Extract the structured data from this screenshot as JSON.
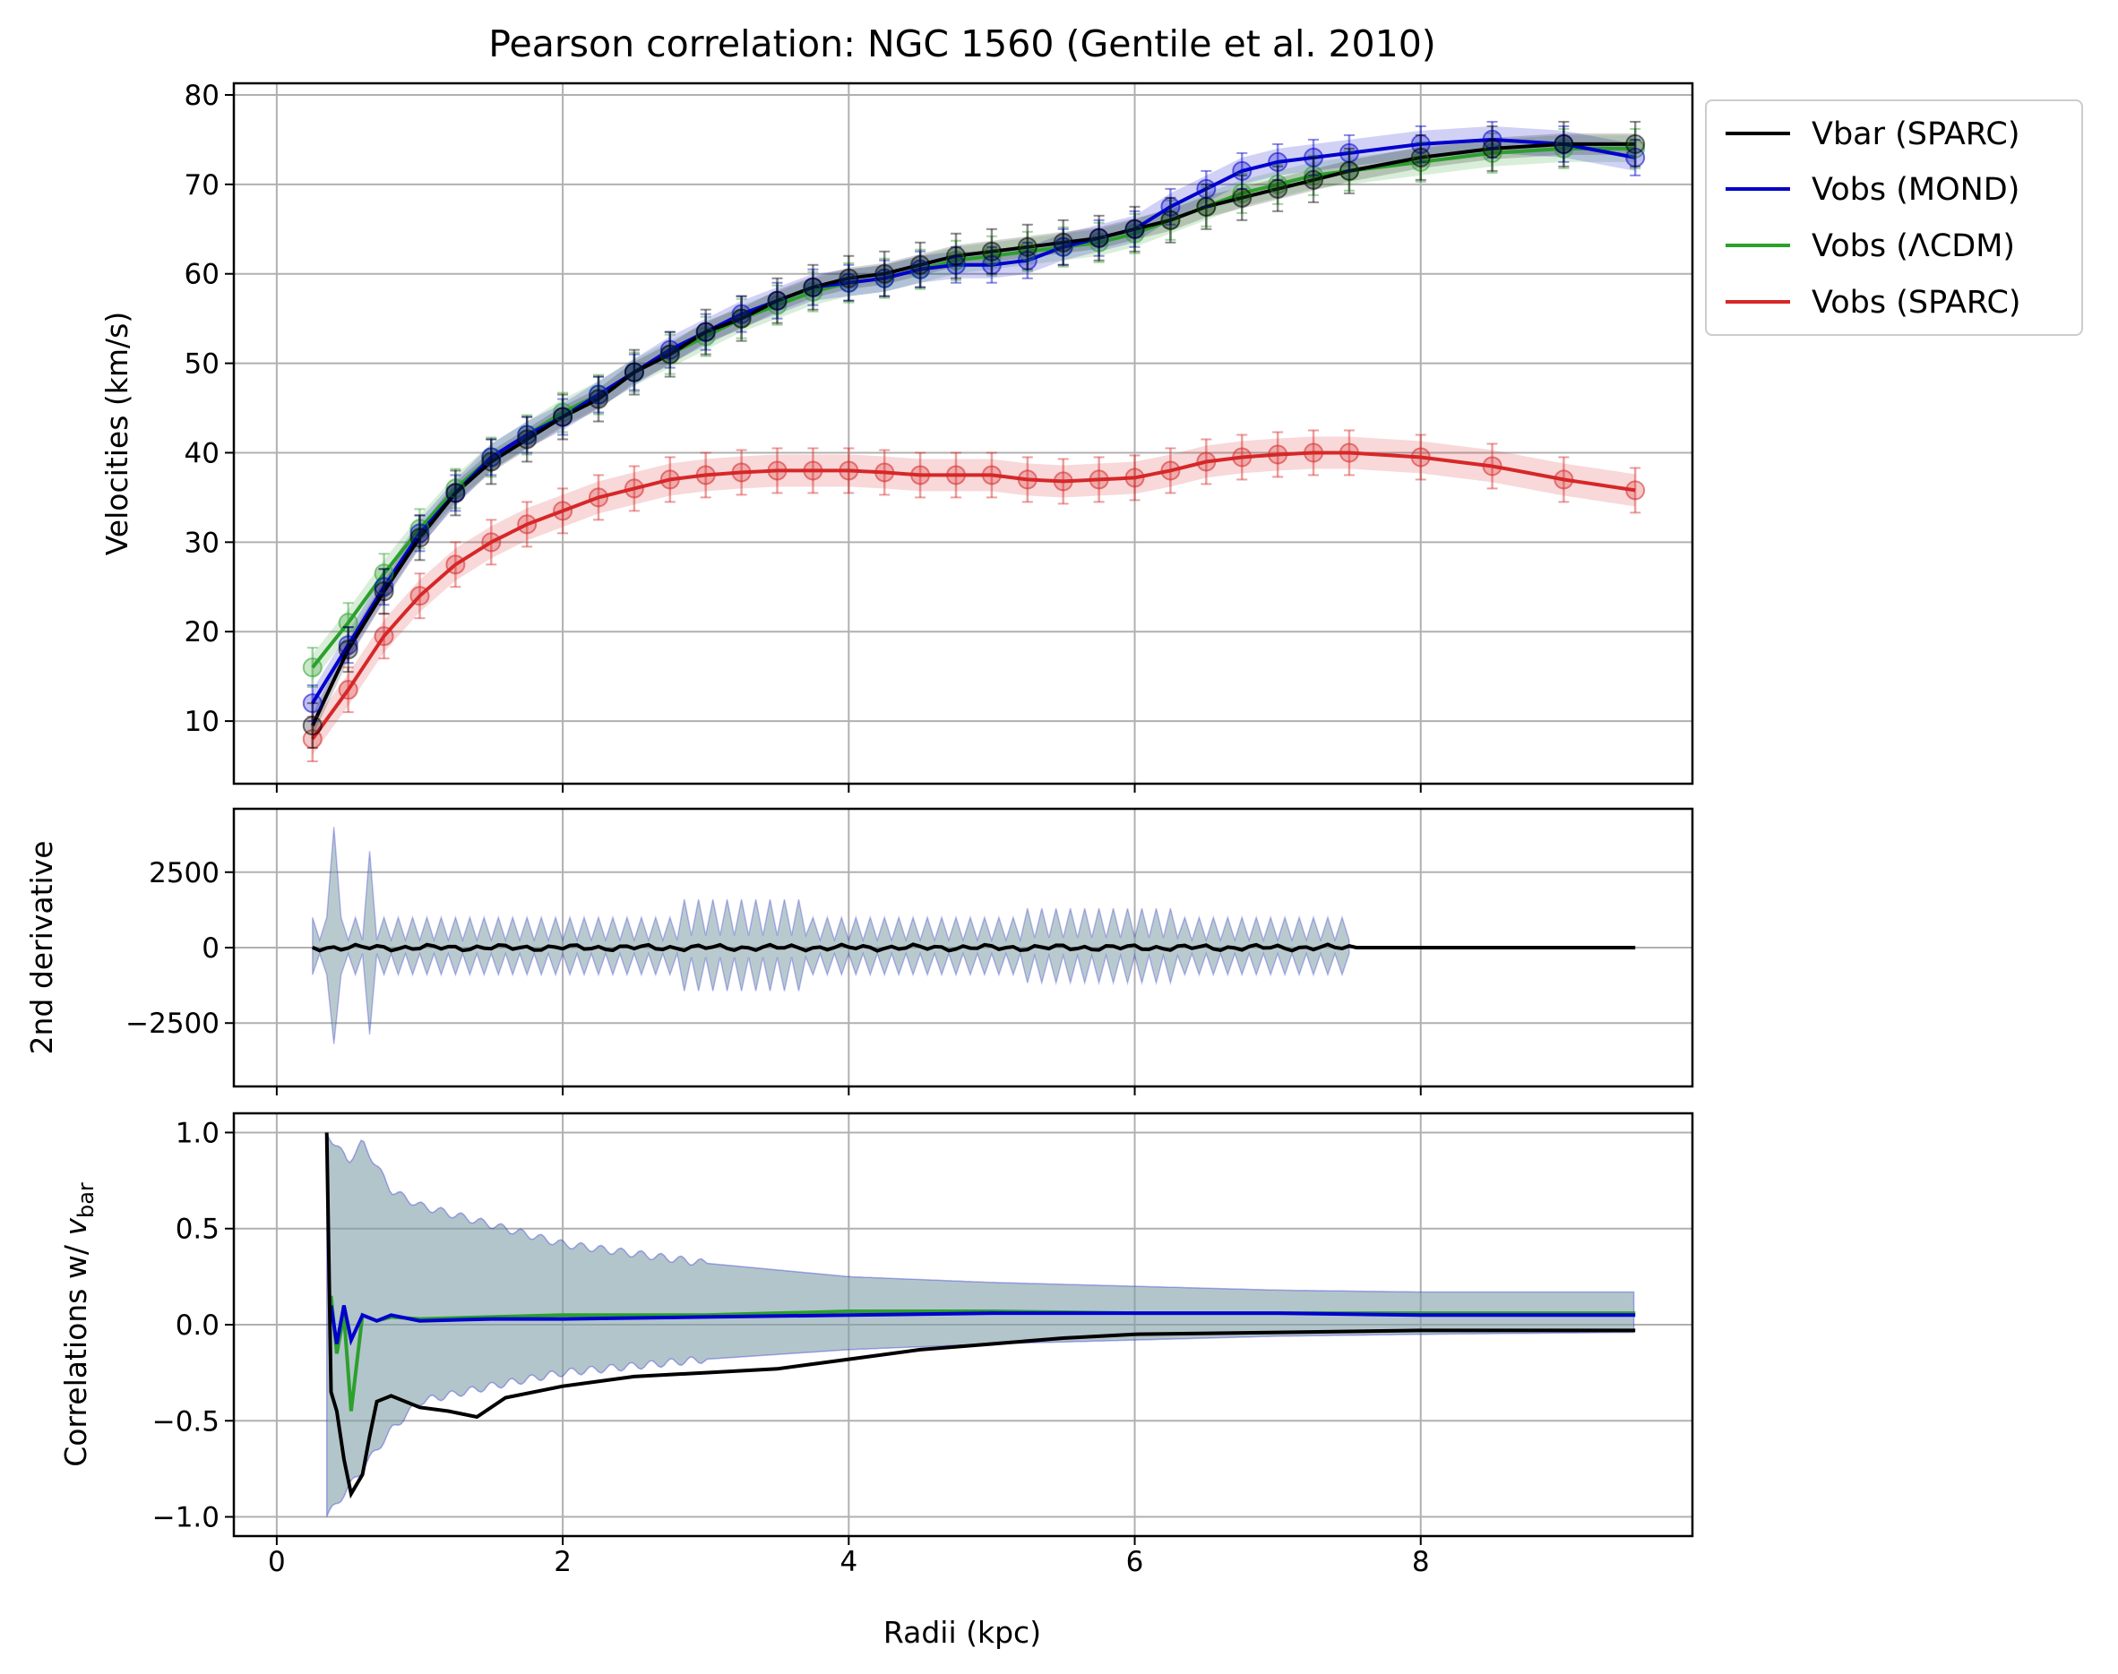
{
  "chart_data": {
    "type": "line",
    "title": "Pearson correlation: NGC 1560 (Gentile et al. 2010)",
    "xlabel": "Radii (kpc)",
    "xlim": [
      -0.3,
      9.9
    ],
    "xticks": [
      0,
      2,
      4,
      6,
      8
    ],
    "colors": {
      "vbar": "#000000",
      "mond": "#0000cc",
      "lcdm": "#2ca02c",
      "sparc": "#d62728",
      "band": "#7f9fa8",
      "grid": "#b0b0b0"
    },
    "legend": {
      "position": "outside-top-right",
      "entries": [
        "Vbar (SPARC)",
        "Vobs (MOND)",
        "Vobs (ΛCDM)",
        "Vobs (SPARC)"
      ]
    },
    "panels": [
      {
        "name": "velocities",
        "ylabel": "Velocities (km/s)",
        "ylim": [
          3,
          81.3
        ],
        "yticks": [
          10,
          20,
          30,
          40,
          50,
          60,
          70,
          80
        ],
        "ytick_labels": [
          "10",
          "20",
          "30",
          "40",
          "50",
          "60",
          "70",
          "80"
        ],
        "x": [
          0.25,
          0.5,
          0.75,
          1.0,
          1.25,
          1.5,
          1.75,
          2.0,
          2.25,
          2.5,
          2.75,
          3.0,
          3.25,
          3.5,
          3.75,
          4.0,
          4.25,
          4.5,
          4.75,
          5.0,
          5.25,
          5.5,
          5.75,
          6.0,
          6.25,
          6.5,
          6.75,
          7.0,
          7.25,
          7.5,
          8.0,
          8.5,
          9.0,
          9.5
        ],
        "series": [
          {
            "name": "Vbar (SPARC)",
            "values": [
              9.5,
              18,
              24.5,
              30.5,
              35.5,
              39,
              41.5,
              44,
              46,
              49,
              51,
              53.5,
              55,
              57,
              58.5,
              59.5,
              60,
              61,
              62,
              62.5,
              63,
              63.5,
              64,
              65,
              66,
              67.5,
              68.5,
              69.5,
              70.5,
              71.5,
              73,
              74,
              74.5,
              74.5
            ]
          },
          {
            "name": "Vobs (MOND)",
            "values": [
              12,
              18.5,
              25,
              31,
              35.5,
              39.5,
              42,
              44,
              46.5,
              49,
              51.5,
              53.5,
              55.5,
              57,
              58.5,
              59,
              59.5,
              60.5,
              61,
              61,
              61.5,
              63,
              64,
              65,
              67.5,
              69.5,
              71.5,
              72.5,
              73,
              73.5,
              74.5,
              75,
              74.5,
              73
            ]
          },
          {
            "name": "Vobs (ΛCDM)",
            "values": [
              16,
              21,
              26.5,
              31.5,
              36,
              39.5,
              42,
              44.5,
              46.5,
              49,
              51,
              53,
              55,
              56.5,
              58,
              59,
              59.5,
              60.5,
              61.5,
              62,
              62.5,
              63,
              63.5,
              64.5,
              66,
              67.5,
              69,
              70,
              71,
              71.5,
              72.5,
              73.5,
              74,
              74
            ]
          },
          {
            "name": "Vobs (SPARC)",
            "values": [
              8,
              13.5,
              19.5,
              24,
              27.5,
              30,
              32,
              33.5,
              35,
              36,
              37,
              37.5,
              37.8,
              38,
              38,
              38,
              37.8,
              37.5,
              37.5,
              37.5,
              37,
              36.8,
              37,
              37.2,
              38,
              39,
              39.5,
              39.8,
              40,
              40,
              39.5,
              38.5,
              37,
              35.8
            ]
          }
        ]
      },
      {
        "name": "second-derivative",
        "ylabel": "2nd derivative",
        "ylim": [
          -4600,
          4600
        ],
        "yticks": [
          -2500,
          0,
          2500
        ],
        "ytick_labels": [
          "−2500",
          "0",
          "2500"
        ],
        "band_x_range": [
          0.25,
          7.5
        ],
        "band_spikes_x": [
          0.4,
          0.65
        ],
        "band_spikes_values": [
          4000,
          3200
        ],
        "series": [
          {
            "name": "Vbar (SPARC)",
            "values_summary": "≈ 0 across 0.25–9.5 kpc, small wiggles within ±150"
          }
        ]
      },
      {
        "name": "correlations",
        "ylabel": "Correlations w/ ",
        "ylabel_symbol": "v",
        "ylabel_sub": "bar",
        "ylim": [
          -1.1,
          1.1
        ],
        "yticks": [
          -1.0,
          -0.5,
          0.0,
          0.5,
          1.0
        ],
        "ytick_labels": [
          "−1.0",
          "−0.5",
          "0.0",
          "0.5",
          "1.0"
        ],
        "series": [
          {
            "name": "Vbar (SPARC)",
            "x": [
              0.35,
              0.38,
              0.42,
              0.47,
              0.52,
              0.6,
              0.65,
              0.7,
              0.8,
              1.0,
              1.2,
              1.4,
              1.6,
              2.0,
              2.5,
              3.0,
              3.5,
              4.0,
              4.5,
              5.0,
              5.5,
              6.0,
              7.0,
              8.0,
              9.5
            ],
            "values": [
              1.0,
              -0.35,
              -0.45,
              -0.7,
              -0.88,
              -0.78,
              -0.58,
              -0.4,
              -0.37,
              -0.43,
              -0.45,
              -0.48,
              -0.38,
              -0.32,
              -0.27,
              -0.25,
              -0.23,
              -0.18,
              -0.13,
              -0.1,
              -0.07,
              -0.05,
              -0.04,
              -0.03,
              -0.03
            ]
          },
          {
            "name": "Vobs (MOND)",
            "x": [
              0.38,
              0.42,
              0.47,
              0.52,
              0.6,
              0.7,
              0.8,
              1.0,
              1.5,
              2.0,
              3.0,
              4.0,
              5.0,
              6.0,
              7.0,
              8.0,
              9.5
            ],
            "values": [
              0.1,
              -0.1,
              0.1,
              -0.08,
              0.05,
              0.02,
              0.05,
              0.02,
              0.03,
              0.03,
              0.04,
              0.05,
              0.06,
              0.06,
              0.06,
              0.05,
              0.05
            ]
          },
          {
            "name": "Vobs (ΛCDM)",
            "x": [
              0.38,
              0.42,
              0.47,
              0.52,
              0.6,
              0.7,
              0.8,
              1.0,
              1.5,
              2.0,
              3.0,
              4.0,
              5.0,
              6.0,
              7.0,
              8.0,
              9.5
            ],
            "values": [
              0.15,
              -0.15,
              0.05,
              -0.45,
              0.05,
              0.02,
              0.04,
              0.03,
              0.04,
              0.05,
              0.05,
              0.07,
              0.07,
              0.06,
              0.06,
              0.06,
              0.06
            ]
          }
        ],
        "band_upper": {
          "x": [
            0.35,
            0.5,
            0.6,
            0.8,
            1.0,
            1.5,
            2.0,
            3.0,
            4.0,
            5.0,
            6.0,
            7.0,
            8.0,
            9.5
          ],
          "values": [
            1.0,
            0.85,
            0.95,
            0.7,
            0.62,
            0.52,
            0.42,
            0.32,
            0.25,
            0.22,
            0.2,
            0.18,
            0.17,
            0.17
          ]
        },
        "band_lower": {
          "x": [
            0.35,
            0.5,
            0.6,
            0.8,
            1.0,
            1.5,
            2.0,
            3.0,
            4.0,
            5.0,
            6.0,
            7.0,
            8.0,
            9.5
          ],
          "values": [
            -1.0,
            -0.85,
            -0.75,
            -0.55,
            -0.4,
            -0.32,
            -0.25,
            -0.18,
            -0.13,
            -0.1,
            -0.08,
            -0.06,
            -0.05,
            -0.04
          ]
        }
      }
    ]
  }
}
